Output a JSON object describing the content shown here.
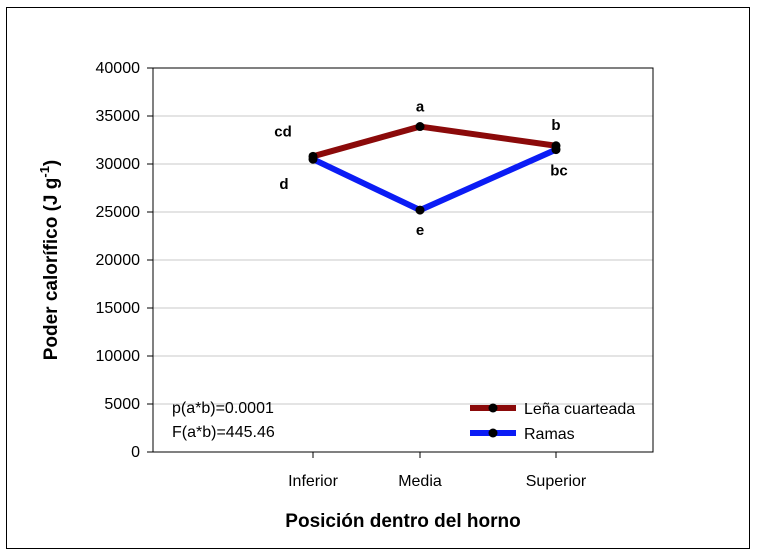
{
  "chart_data": {
    "type": "line",
    "categories": [
      "Inferior",
      "Media",
      "Superior"
    ],
    "series": [
      {
        "name": "Leña cuarteada",
        "color": "#8b0a0a",
        "values": [
          30800,
          33900,
          31900
        ],
        "labels": [
          "cd",
          "a",
          "b"
        ]
      },
      {
        "name": "Ramas",
        "color": "#0b1cf5",
        "values": [
          30500,
          25200,
          31500
        ],
        "labels": [
          "d",
          "e",
          "bc"
        ]
      }
    ],
    "xlabel": "Posición dentro del horno",
    "ylabel": "Poder calorífico (J g",
    "ylabel_superscript": "-1",
    "ylabel_suffix": ")",
    "ylim": [
      0,
      40000
    ],
    "yticks": [
      "0",
      "5000",
      "10000",
      "15000",
      "20000",
      "25000",
      "30000",
      "35000",
      "40000"
    ],
    "grid": true,
    "legend_position": "bottom-right",
    "annotations": [
      "p(a*b)=0.0001",
      "F(a*b)=445.46"
    ]
  }
}
